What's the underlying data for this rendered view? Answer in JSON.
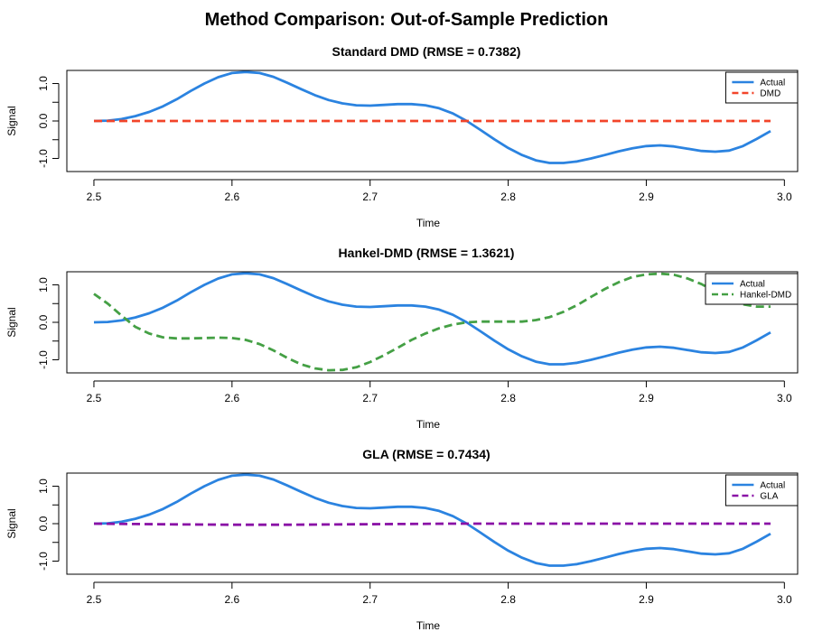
{
  "page": {
    "title": "Method Comparison: Out-of-Sample Prediction"
  },
  "colors": {
    "actual": "#2b83e0",
    "dmd": "#f2452a",
    "hankel": "#45a045",
    "gla": "#8a12a6"
  },
  "chart_data": [
    {
      "type": "line",
      "title": "Standard DMD (RMSE = 0.7382)",
      "xlabel": "Time",
      "ylabel": "Signal",
      "xlim": [
        2.5,
        3.0
      ],
      "ylim": [
        -1.35,
        1.35
      ],
      "xticks": [
        {
          "value": 2.5,
          "label": "2.5"
        },
        {
          "value": 2.6,
          "label": "2.6"
        },
        {
          "value": 2.7,
          "label": "2.7"
        },
        {
          "value": 2.8,
          "label": "2.8"
        },
        {
          "value": 2.9,
          "label": "2.9"
        },
        {
          "value": 3.0,
          "label": "3.0"
        }
      ],
      "yticks": [
        {
          "value": -1.0,
          "label": "-1.0"
        },
        {
          "value": -0.5,
          "label": ""
        },
        {
          "value": 0.0,
          "label": "0.0"
        },
        {
          "value": 0.5,
          "label": ""
        },
        {
          "value": 1.0,
          "label": "1.0"
        }
      ],
      "legend_position": "top-right",
      "series": [
        {
          "name": "Actual",
          "color": "#2b83e0",
          "dash": "solid",
          "x": [
            2.5,
            2.51,
            2.52,
            2.53,
            2.54,
            2.55,
            2.56,
            2.57,
            2.58,
            2.59,
            2.6,
            2.61,
            2.62,
            2.63,
            2.64,
            2.65,
            2.66,
            2.67,
            2.68,
            2.69,
            2.7,
            2.71,
            2.72,
            2.73,
            2.74,
            2.75,
            2.76,
            2.77,
            2.78,
            2.79,
            2.8,
            2.81,
            2.82,
            2.83,
            2.84,
            2.85,
            2.86,
            2.87,
            2.88,
            2.89,
            2.9,
            2.91,
            2.92,
            2.93,
            2.94,
            2.95,
            2.96,
            2.97,
            2.98,
            2.99
          ],
          "y": [
            0.0,
            0.01,
            0.05,
            0.13,
            0.24,
            0.39,
            0.58,
            0.8,
            1.0,
            1.17,
            1.28,
            1.31,
            1.28,
            1.18,
            1.02,
            0.85,
            0.69,
            0.56,
            0.47,
            0.42,
            0.41,
            0.43,
            0.45,
            0.45,
            0.42,
            0.34,
            0.2,
            0.0,
            -0.24,
            -0.49,
            -0.72,
            -0.91,
            -1.05,
            -1.12,
            -1.12,
            -1.08,
            -1.0,
            -0.91,
            -0.81,
            -0.73,
            -0.67,
            -0.65,
            -0.68,
            -0.74,
            -0.8,
            -0.82,
            -0.79,
            -0.67,
            -0.48,
            -0.27
          ]
        },
        {
          "name": "DMD",
          "color": "#f2452a",
          "dash": "dashed",
          "x": [
            2.5,
            2.99
          ],
          "y": [
            0.0,
            0.0
          ]
        }
      ]
    },
    {
      "type": "line",
      "title": "Hankel-DMD (RMSE = 1.3621)",
      "xlabel": "Time",
      "ylabel": "Signal",
      "xlim": [
        2.5,
        3.0
      ],
      "ylim": [
        -1.35,
        1.35
      ],
      "xticks": [
        {
          "value": 2.5,
          "label": "2.5"
        },
        {
          "value": 2.6,
          "label": "2.6"
        },
        {
          "value": 2.7,
          "label": "2.7"
        },
        {
          "value": 2.8,
          "label": "2.8"
        },
        {
          "value": 2.9,
          "label": "2.9"
        },
        {
          "value": 3.0,
          "label": "3.0"
        }
      ],
      "yticks": [
        {
          "value": -1.0,
          "label": "-1.0"
        },
        {
          "value": -0.5,
          "label": ""
        },
        {
          "value": 0.0,
          "label": "0.0"
        },
        {
          "value": 0.5,
          "label": ""
        },
        {
          "value": 1.0,
          "label": "1.0"
        }
      ],
      "legend_position": "top-right",
      "series": [
        {
          "name": "Actual",
          "color": "#2b83e0",
          "dash": "solid",
          "x": [
            2.5,
            2.51,
            2.52,
            2.53,
            2.54,
            2.55,
            2.56,
            2.57,
            2.58,
            2.59,
            2.6,
            2.61,
            2.62,
            2.63,
            2.64,
            2.65,
            2.66,
            2.67,
            2.68,
            2.69,
            2.7,
            2.71,
            2.72,
            2.73,
            2.74,
            2.75,
            2.76,
            2.77,
            2.78,
            2.79,
            2.8,
            2.81,
            2.82,
            2.83,
            2.84,
            2.85,
            2.86,
            2.87,
            2.88,
            2.89,
            2.9,
            2.91,
            2.92,
            2.93,
            2.94,
            2.95,
            2.96,
            2.97,
            2.98,
            2.99
          ],
          "y": [
            0.0,
            0.01,
            0.05,
            0.13,
            0.24,
            0.39,
            0.58,
            0.8,
            1.0,
            1.17,
            1.28,
            1.31,
            1.28,
            1.18,
            1.02,
            0.85,
            0.69,
            0.56,
            0.47,
            0.42,
            0.41,
            0.43,
            0.45,
            0.45,
            0.42,
            0.34,
            0.2,
            0.0,
            -0.24,
            -0.49,
            -0.72,
            -0.91,
            -1.05,
            -1.12,
            -1.12,
            -1.08,
            -1.0,
            -0.91,
            -0.81,
            -0.73,
            -0.67,
            -0.65,
            -0.68,
            -0.74,
            -0.8,
            -0.82,
            -0.79,
            -0.67,
            -0.48,
            -0.27
          ]
        },
        {
          "name": "Hankel-DMD",
          "color": "#45a045",
          "dash": "dashed",
          "x": [
            2.5,
            2.51,
            2.52,
            2.53,
            2.54,
            2.55,
            2.56,
            2.57,
            2.58,
            2.59,
            2.6,
            2.61,
            2.62,
            2.63,
            2.64,
            2.65,
            2.66,
            2.67,
            2.68,
            2.69,
            2.7,
            2.71,
            2.72,
            2.73,
            2.74,
            2.75,
            2.76,
            2.77,
            2.78,
            2.79,
            2.8,
            2.81,
            2.82,
            2.83,
            2.84,
            2.85,
            2.86,
            2.87,
            2.88,
            2.89,
            2.9,
            2.91,
            2.92,
            2.93,
            2.94,
            2.95,
            2.96,
            2.97,
            2.98,
            2.99
          ],
          "y": [
            0.76,
            0.5,
            0.18,
            -0.12,
            -0.3,
            -0.4,
            -0.43,
            -0.43,
            -0.42,
            -0.41,
            -0.42,
            -0.47,
            -0.58,
            -0.75,
            -0.95,
            -1.12,
            -1.23,
            -1.28,
            -1.27,
            -1.2,
            -1.06,
            -0.88,
            -0.68,
            -0.47,
            -0.3,
            -0.16,
            -0.06,
            0.0,
            0.02,
            0.02,
            0.02,
            0.02,
            0.06,
            0.14,
            0.28,
            0.46,
            0.68,
            0.89,
            1.07,
            1.21,
            1.28,
            1.3,
            1.27,
            1.17,
            1.02,
            0.82,
            0.62,
            0.48,
            0.42,
            0.42
          ]
        }
      ]
    },
    {
      "type": "line",
      "title": "GLA (RMSE = 0.7434)",
      "xlabel": "Time",
      "ylabel": "Signal",
      "xlim": [
        2.5,
        3.0
      ],
      "ylim": [
        -1.35,
        1.35
      ],
      "xticks": [
        {
          "value": 2.5,
          "label": "2.5"
        },
        {
          "value": 2.6,
          "label": "2.6"
        },
        {
          "value": 2.7,
          "label": "2.7"
        },
        {
          "value": 2.8,
          "label": "2.8"
        },
        {
          "value": 2.9,
          "label": "2.9"
        },
        {
          "value": 3.0,
          "label": "3.0"
        }
      ],
      "yticks": [
        {
          "value": -1.0,
          "label": "-1.0"
        },
        {
          "value": -0.5,
          "label": ""
        },
        {
          "value": 0.0,
          "label": "0.0"
        },
        {
          "value": 0.5,
          "label": ""
        },
        {
          "value": 1.0,
          "label": "1.0"
        }
      ],
      "legend_position": "top-right",
      "series": [
        {
          "name": "Actual",
          "color": "#2b83e0",
          "dash": "solid",
          "x": [
            2.5,
            2.51,
            2.52,
            2.53,
            2.54,
            2.55,
            2.56,
            2.57,
            2.58,
            2.59,
            2.6,
            2.61,
            2.62,
            2.63,
            2.64,
            2.65,
            2.66,
            2.67,
            2.68,
            2.69,
            2.7,
            2.71,
            2.72,
            2.73,
            2.74,
            2.75,
            2.76,
            2.77,
            2.78,
            2.79,
            2.8,
            2.81,
            2.82,
            2.83,
            2.84,
            2.85,
            2.86,
            2.87,
            2.88,
            2.89,
            2.9,
            2.91,
            2.92,
            2.93,
            2.94,
            2.95,
            2.96,
            2.97,
            2.98,
            2.99
          ],
          "y": [
            0.0,
            0.01,
            0.05,
            0.13,
            0.24,
            0.39,
            0.58,
            0.8,
            1.0,
            1.17,
            1.28,
            1.31,
            1.28,
            1.18,
            1.02,
            0.85,
            0.69,
            0.56,
            0.47,
            0.42,
            0.41,
            0.43,
            0.45,
            0.45,
            0.42,
            0.34,
            0.2,
            0.0,
            -0.24,
            -0.49,
            -0.72,
            -0.91,
            -1.05,
            -1.12,
            -1.12,
            -1.08,
            -1.0,
            -0.91,
            -0.81,
            -0.73,
            -0.67,
            -0.65,
            -0.68,
            -0.74,
            -0.8,
            -0.82,
            -0.79,
            -0.67,
            -0.48,
            -0.27
          ]
        },
        {
          "name": "GLA",
          "color": "#8a12a6",
          "dash": "dashed",
          "x": [
            2.5,
            2.53,
            2.56,
            2.6,
            2.64,
            2.68,
            2.72,
            2.76,
            2.8,
            2.85,
            2.9,
            2.95,
            2.99
          ],
          "y": [
            0.0,
            -0.01,
            -0.02,
            -0.03,
            -0.03,
            -0.02,
            -0.01,
            0.0,
            0.0,
            0.0,
            0.0,
            0.0,
            0.0
          ]
        }
      ]
    }
  ]
}
